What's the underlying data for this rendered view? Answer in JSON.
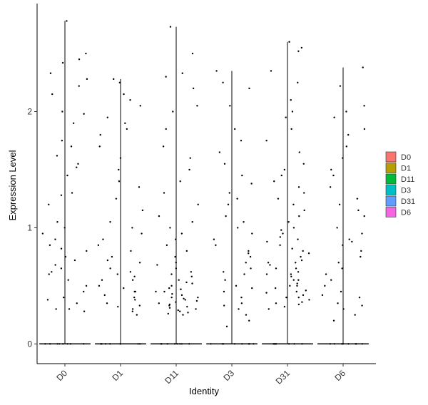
{
  "chart_data": {
    "type": "violin",
    "x_label": "Identity",
    "y_label": "Expression Level",
    "categories": [
      "D0",
      "D1",
      "D11",
      "D3",
      "D31",
      "D6"
    ],
    "ylim": [
      -0.17,
      2.93
    ],
    "yticks": [
      0,
      1,
      2
    ],
    "grid": false,
    "legend": "right",
    "series": [
      {
        "name": "D0",
        "color": "#F8766D",
        "values": [
          0,
          0,
          0,
          0,
          0,
          0,
          0,
          0,
          2.78,
          2.5,
          2.45,
          2.33,
          2.28,
          2.22,
          2.0,
          1.98,
          1.75,
          1.7,
          1.62,
          1.52,
          1.45,
          1.3,
          1.28,
          1.2,
          1.05,
          1.0,
          0.95,
          0.85,
          0.82,
          0.8,
          0.72,
          0.68,
          0.65,
          0.62,
          0.55,
          0.5,
          0.45,
          0.4,
          0.35,
          0.3,
          0.28,
          2.42,
          2.15,
          1.9,
          1.55,
          0.9,
          0.75,
          0.6,
          0.38,
          0.3
        ]
      },
      {
        "name": "D1",
        "color": "#B79F00",
        "values": [
          0,
          0,
          0,
          0,
          0,
          0,
          0,
          0,
          2.28,
          2.15,
          2.1,
          2.05,
          1.95,
          1.85,
          1.8,
          1.7,
          1.6,
          1.5,
          1.4,
          1.35,
          1.25,
          1.15,
          1.05,
          1.0,
          0.95,
          0.9,
          0.85,
          0.8,
          0.75,
          0.72,
          0.7,
          0.65,
          0.6,
          0.58,
          0.55,
          0.5,
          0.48,
          0.45,
          0.42,
          0.4,
          0.38,
          0.35,
          0.32,
          0.3,
          0.28,
          0.25,
          0.55,
          0.62,
          0.45,
          0.33,
          1.9,
          2.25
        ]
      },
      {
        "name": "D11",
        "color": "#00BA38",
        "values": [
          0,
          0,
          0,
          0,
          0,
          0,
          0,
          0,
          2.73,
          2.5,
          2.33,
          2.3,
          2.2,
          2.05,
          2.0,
          1.85,
          1.7,
          1.6,
          1.5,
          1.4,
          1.3,
          1.2,
          1.1,
          1.05,
          1.0,
          0.95,
          0.9,
          0.85,
          0.8,
          0.75,
          0.7,
          0.68,
          0.65,
          0.62,
          0.6,
          0.58,
          0.55,
          0.53,
          0.5,
          0.48,
          0.47,
          0.45,
          0.43,
          0.42,
          0.4,
          0.39,
          0.38,
          0.36,
          0.35,
          0.34,
          0.33,
          0.32,
          0.3,
          0.29,
          0.28,
          0.27,
          0.26,
          0.25,
          0.45,
          0.4,
          0.37,
          0.52,
          0.31
        ]
      },
      {
        "name": "D3",
        "color": "#00BFC4",
        "values": [
          0,
          0,
          0,
          0,
          0,
          0,
          0,
          0,
          2.35,
          2.25,
          2.2,
          2.05,
          1.85,
          1.75,
          1.65,
          1.55,
          1.45,
          1.38,
          1.3,
          1.25,
          1.2,
          1.1,
          1.0,
          0.95,
          0.9,
          0.85,
          0.8,
          0.75,
          0.7,
          0.65,
          0.6,
          0.55,
          0.5,
          0.45,
          0.4,
          0.35,
          0.3,
          0.25,
          0.2,
          0.15,
          1.05,
          0.78,
          0.62,
          0.48,
          0.33
        ]
      },
      {
        "name": "D31",
        "color": "#619CFF",
        "values": [
          0,
          0,
          0,
          0,
          0,
          0,
          0,
          0,
          2.6,
          2.55,
          2.52,
          2.35,
          2.25,
          2.1,
          2.0,
          1.95,
          1.85,
          1.75,
          1.65,
          1.55,
          1.5,
          1.45,
          1.4,
          1.35,
          1.3,
          1.25,
          1.2,
          1.15,
          1.1,
          1.05,
          1.0,
          0.98,
          0.95,
          0.92,
          0.9,
          0.88,
          0.85,
          0.82,
          0.8,
          0.78,
          0.75,
          0.72,
          0.7,
          0.68,
          0.65,
          0.62,
          0.6,
          0.58,
          0.55,
          0.52,
          0.5,
          0.48,
          0.46,
          0.44,
          0.42,
          0.4,
          0.38,
          0.36,
          0.34,
          0.32,
          0.3,
          0.45,
          0.5,
          0.55,
          0.65,
          0.7,
          0.4,
          0.35,
          0.6
        ]
      },
      {
        "name": "D6",
        "color": "#F564E3",
        "values": [
          0,
          0,
          0,
          0,
          0,
          0,
          0,
          0,
          2.38,
          2.22,
          2.05,
          2.0,
          1.95,
          1.85,
          1.8,
          1.7,
          1.6,
          1.5,
          1.45,
          1.35,
          1.25,
          1.15,
          1.1,
          1.0,
          0.95,
          0.9,
          0.85,
          0.8,
          0.75,
          0.7,
          0.65,
          0.6,
          0.55,
          0.5,
          0.45,
          0.4,
          0.35,
          0.3,
          0.25,
          0.2,
          1.2,
          0.88,
          0.42,
          0.33
        ]
      }
    ]
  }
}
